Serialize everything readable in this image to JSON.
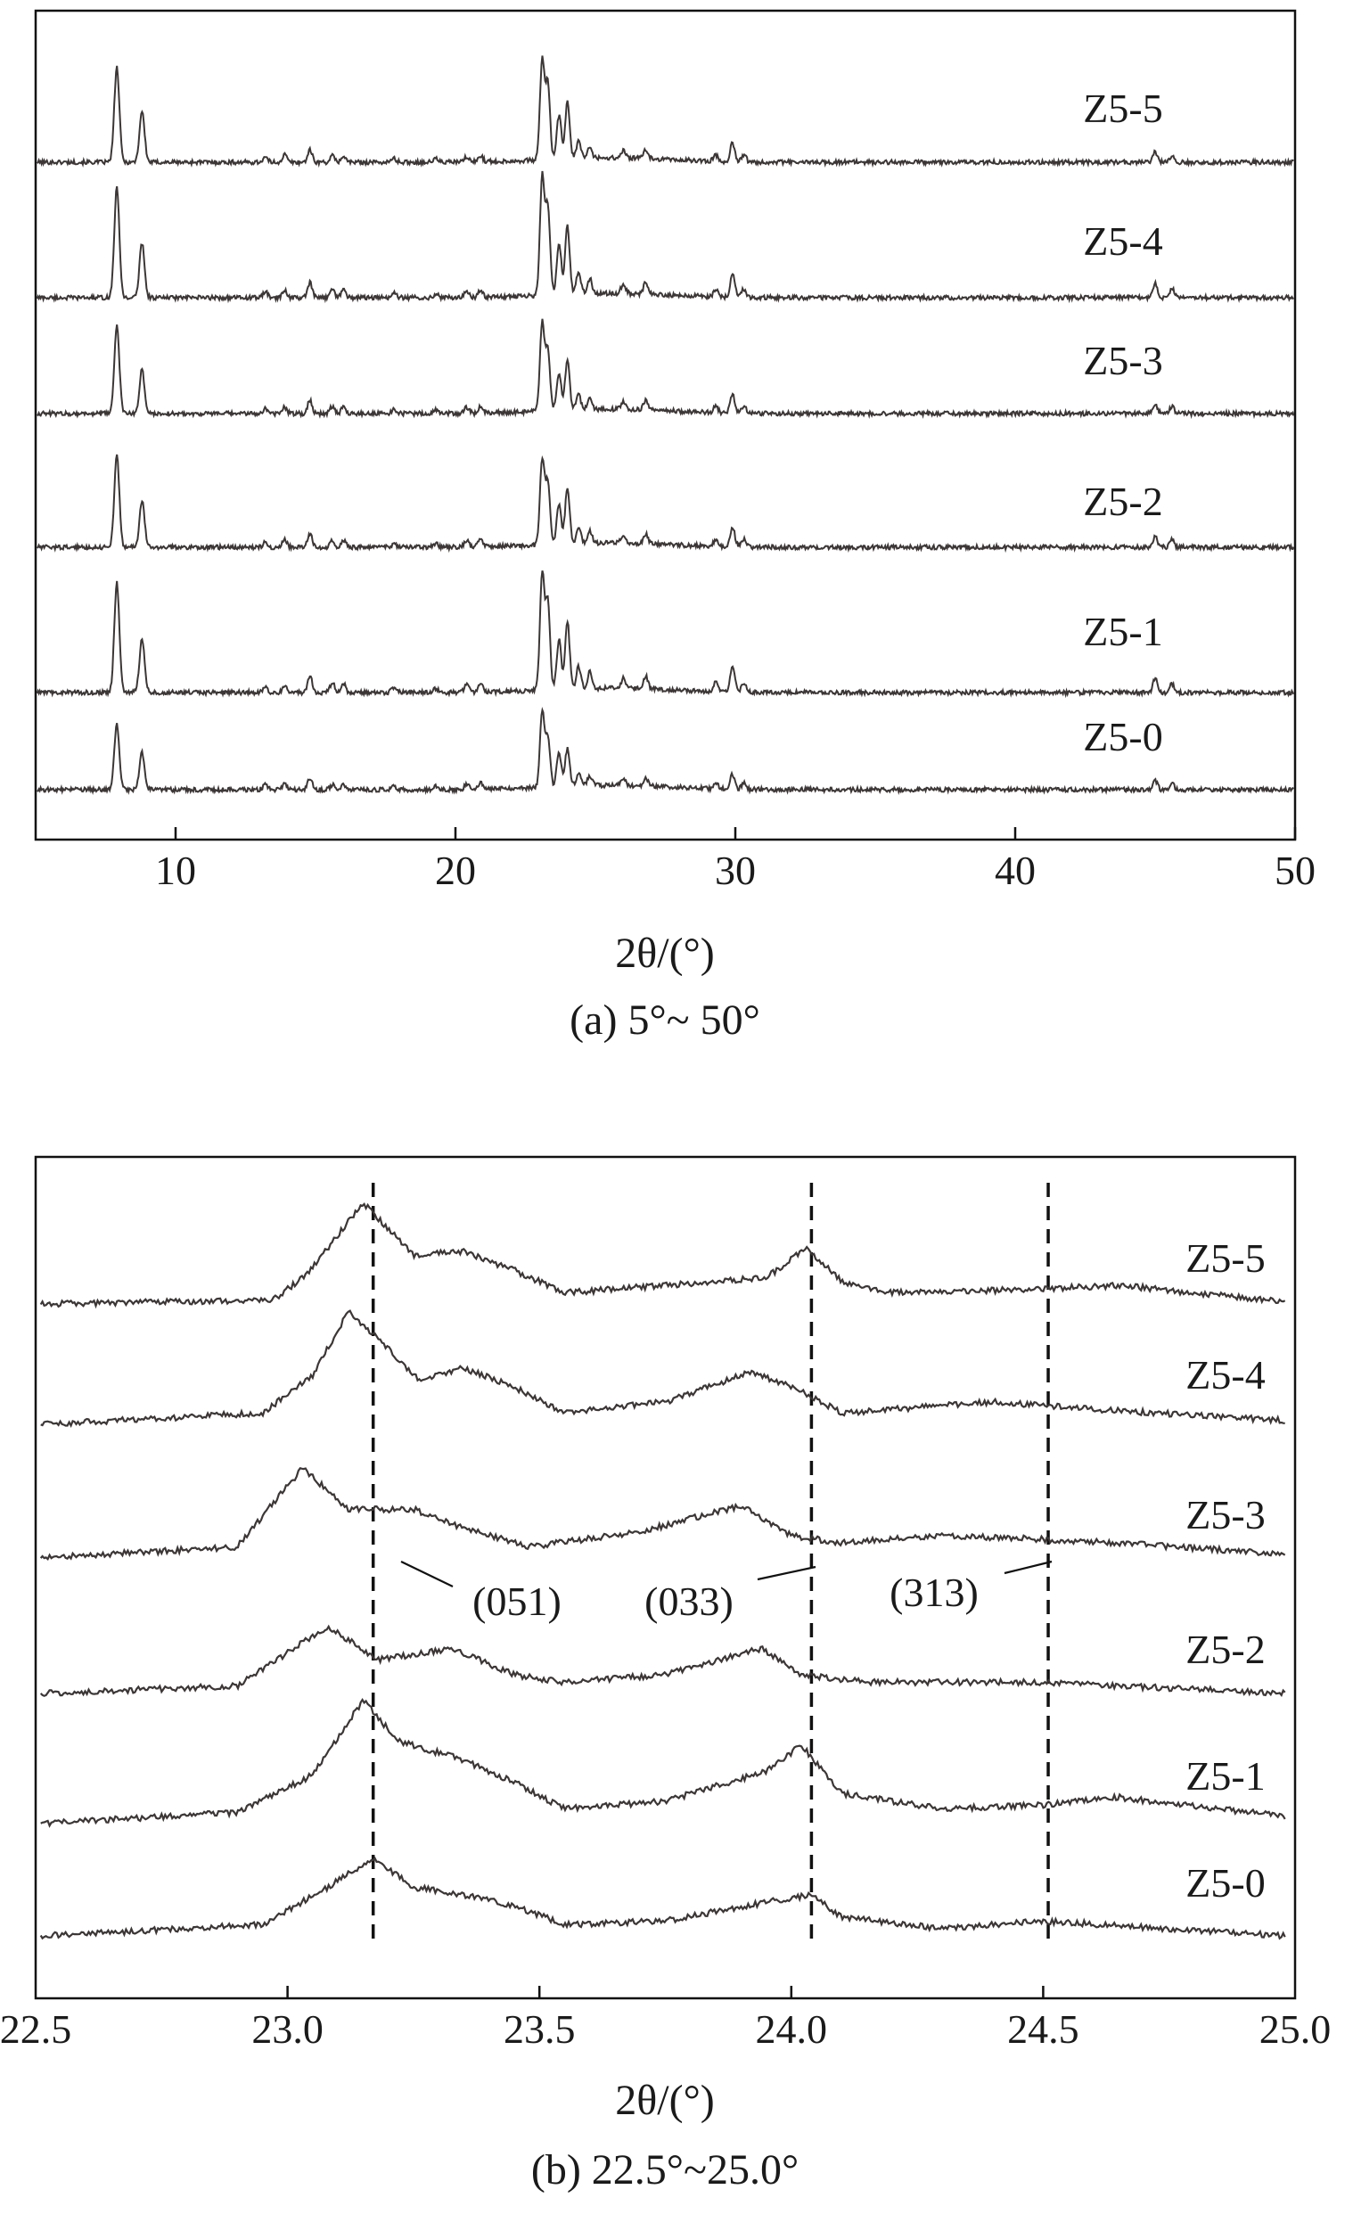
{
  "colors": {
    "trace": "#3c3636",
    "axis": "#111111",
    "guide": "#111111"
  },
  "chart_data": [
    {
      "type": "line",
      "caption": "(a) 5°~ 50°",
      "xlabel": "2θ/(°)",
      "xlim": [
        5,
        50
      ],
      "xticks": [
        10,
        20,
        30,
        40,
        50
      ],
      "tick_labels": [
        "10",
        "20",
        "30",
        "40",
        "50"
      ],
      "y_axis_labels": false,
      "series": [
        {
          "name": "Z5-5",
          "peaks": [
            [
              7.9,
              7.6
            ],
            [
              8.8,
              4.1
            ],
            [
              13.2,
              0.4
            ],
            [
              13.9,
              0.6
            ],
            [
              14.8,
              1.0
            ],
            [
              15.6,
              0.5
            ],
            [
              16.0,
              0.5
            ],
            [
              17.8,
              0.3
            ],
            [
              19.3,
              0.3
            ],
            [
              20.4,
              0.4
            ],
            [
              20.9,
              0.5
            ],
            [
              23.1,
              8.0
            ],
            [
              23.3,
              6.0
            ],
            [
              23.7,
              3.5
            ],
            [
              24.0,
              4.5
            ],
            [
              24.4,
              1.4
            ],
            [
              24.8,
              0.9
            ],
            [
              26.0,
              0.6
            ],
            [
              26.8,
              0.7
            ],
            [
              29.3,
              0.5
            ],
            [
              29.9,
              1.5
            ],
            [
              30.3,
              0.6
            ],
            [
              45.0,
              0.8
            ],
            [
              45.6,
              0.5
            ]
          ]
        },
        {
          "name": "Z5-4",
          "peaks": [
            [
              7.9,
              8.8
            ],
            [
              8.8,
              4.4
            ],
            [
              13.2,
              0.5
            ],
            [
              13.9,
              0.6
            ],
            [
              14.8,
              1.2
            ],
            [
              15.6,
              0.8
            ],
            [
              16.0,
              0.7
            ],
            [
              17.8,
              0.4
            ],
            [
              19.3,
              0.3
            ],
            [
              20.4,
              0.5
            ],
            [
              20.9,
              0.6
            ],
            [
              23.1,
              9.5
            ],
            [
              23.3,
              7.0
            ],
            [
              23.7,
              4.2
            ],
            [
              24.0,
              5.5
            ],
            [
              24.4,
              1.8
            ],
            [
              24.8,
              1.2
            ],
            [
              26.0,
              0.8
            ],
            [
              26.8,
              0.9
            ],
            [
              29.3,
              0.6
            ],
            [
              29.9,
              2.0
            ],
            [
              30.3,
              0.7
            ],
            [
              45.0,
              1.1
            ],
            [
              45.6,
              0.8
            ]
          ]
        },
        {
          "name": "Z5-3",
          "peaks": [
            [
              7.9,
              7.0
            ],
            [
              8.8,
              3.5
            ],
            [
              13.2,
              0.4
            ],
            [
              13.9,
              0.5
            ],
            [
              14.8,
              1.1
            ],
            [
              15.6,
              0.6
            ],
            [
              16.0,
              0.5
            ],
            [
              17.8,
              0.3
            ],
            [
              19.3,
              0.3
            ],
            [
              20.4,
              0.5
            ],
            [
              20.9,
              0.5
            ],
            [
              23.1,
              7.0
            ],
            [
              23.3,
              4.8
            ],
            [
              23.7,
              3.0
            ],
            [
              24.0,
              4.0
            ],
            [
              24.4,
              1.2
            ],
            [
              24.8,
              0.9
            ],
            [
              26.0,
              0.6
            ],
            [
              26.8,
              0.8
            ],
            [
              29.3,
              0.5
            ],
            [
              29.9,
              1.5
            ],
            [
              30.3,
              0.6
            ],
            [
              45.0,
              0.8
            ],
            [
              45.6,
              0.6
            ]
          ]
        },
        {
          "name": "Z5-2",
          "peaks": [
            [
              7.9,
              7.3
            ],
            [
              8.8,
              3.7
            ],
            [
              13.2,
              0.4
            ],
            [
              13.9,
              0.6
            ],
            [
              14.8,
              1.1
            ],
            [
              15.6,
              0.6
            ],
            [
              16.0,
              0.6
            ],
            [
              17.8,
              0.3
            ],
            [
              19.3,
              0.3
            ],
            [
              20.4,
              0.5
            ],
            [
              20.9,
              0.6
            ],
            [
              23.1,
              6.8
            ],
            [
              23.3,
              5.0
            ],
            [
              23.7,
              3.2
            ],
            [
              24.0,
              4.5
            ],
            [
              24.4,
              1.3
            ],
            [
              24.8,
              1.0
            ],
            [
              26.0,
              0.6
            ],
            [
              26.8,
              0.8
            ],
            [
              29.3,
              0.5
            ],
            [
              29.9,
              1.6
            ],
            [
              30.3,
              0.6
            ],
            [
              45.0,
              0.9
            ],
            [
              45.6,
              0.6
            ]
          ]
        },
        {
          "name": "Z5-1",
          "peaks": [
            [
              7.9,
              8.8
            ],
            [
              8.8,
              4.4
            ],
            [
              13.2,
              0.5
            ],
            [
              13.9,
              0.6
            ],
            [
              14.8,
              1.4
            ],
            [
              15.6,
              0.8
            ],
            [
              16.0,
              0.7
            ],
            [
              17.8,
              0.4
            ],
            [
              19.3,
              0.3
            ],
            [
              20.4,
              0.6
            ],
            [
              20.9,
              0.6
            ],
            [
              23.1,
              9.3
            ],
            [
              23.3,
              7.0
            ],
            [
              23.7,
              4.0
            ],
            [
              24.0,
              5.5
            ],
            [
              24.4,
              1.8
            ],
            [
              24.8,
              1.3
            ],
            [
              26.0,
              0.8
            ],
            [
              26.8,
              1.0
            ],
            [
              29.3,
              0.7
            ],
            [
              29.9,
              2.0
            ],
            [
              30.3,
              0.7
            ],
            [
              45.0,
              1.1
            ],
            [
              45.6,
              0.7
            ]
          ]
        },
        {
          "name": "Z5-0",
          "peaks": [
            [
              7.9,
              5.2
            ],
            [
              8.8,
              3.0
            ],
            [
              13.2,
              0.4
            ],
            [
              13.9,
              0.5
            ],
            [
              14.8,
              0.9
            ],
            [
              15.6,
              0.4
            ],
            [
              16.0,
              0.4
            ],
            [
              17.8,
              0.3
            ],
            [
              19.3,
              0.3
            ],
            [
              20.4,
              0.4
            ],
            [
              20.9,
              0.5
            ],
            [
              23.1,
              6.0
            ],
            [
              23.3,
              4.0
            ],
            [
              23.7,
              2.8
            ],
            [
              24.0,
              3.0
            ],
            [
              24.4,
              1.0
            ],
            [
              24.8,
              0.8
            ],
            [
              26.0,
              0.5
            ],
            [
              26.8,
              0.7
            ],
            [
              29.3,
              0.5
            ],
            [
              29.9,
              1.2
            ],
            [
              30.3,
              0.5
            ],
            [
              45.0,
              0.7
            ],
            [
              45.6,
              0.5
            ]
          ]
        }
      ]
    },
    {
      "type": "line",
      "caption": "(b) 22.5°~25.0°",
      "xlabel": "2θ/(°)",
      "xlim": [
        22.5,
        25.0
      ],
      "xticks": [
        22.5,
        23.0,
        23.5,
        24.0,
        24.5,
        25.0
      ],
      "tick_labels": [
        "22.5",
        "23.0",
        "23.5",
        "24.0",
        "24.5",
        "25.0"
      ],
      "y_axis_labels": false,
      "reference_lines": [
        23.17,
        24.04,
        24.51
      ],
      "annotations": [
        {
          "text": "(051)",
          "x": 23.17
        },
        {
          "text": "(033)",
          "x": 24.04
        },
        {
          "text": "(313)",
          "x": 24.51
        }
      ],
      "series": [
        {
          "name": "Z5-5",
          "points": [
            [
              22.51,
              0
            ],
            [
              22.97,
              0.1
            ],
            [
              23.04,
              0.8
            ],
            [
              23.15,
              2.7
            ],
            [
              23.25,
              1.3
            ],
            [
              23.35,
              1.4
            ],
            [
              23.45,
              0.9
            ],
            [
              23.55,
              0.3
            ],
            [
              23.75,
              0.5
            ],
            [
              23.95,
              0.7
            ],
            [
              24.03,
              1.5
            ],
            [
              24.1,
              0.6
            ],
            [
              24.2,
              0.3
            ],
            [
              24.5,
              0.4
            ],
            [
              24.65,
              0.5
            ],
            [
              24.98,
              0.05
            ]
          ]
        },
        {
          "name": "Z5-4",
          "points": [
            [
              22.51,
              0
            ],
            [
              22.95,
              0.3
            ],
            [
              23.05,
              1.3
            ],
            [
              23.12,
              3.0
            ],
            [
              23.18,
              2.3
            ],
            [
              23.26,
              1.2
            ],
            [
              23.35,
              1.5
            ],
            [
              23.45,
              1.0
            ],
            [
              23.55,
              0.3
            ],
            [
              23.75,
              0.6
            ],
            [
              23.92,
              1.4
            ],
            [
              24.02,
              0.9
            ],
            [
              24.1,
              0.3
            ],
            [
              24.4,
              0.6
            ],
            [
              24.6,
              0.4
            ],
            [
              24.98,
              0.1
            ]
          ]
        },
        {
          "name": "Z5-3",
          "points": [
            [
              22.51,
              0
            ],
            [
              22.9,
              0.3
            ],
            [
              23.03,
              2.4
            ],
            [
              23.12,
              1.3
            ],
            [
              23.25,
              1.3
            ],
            [
              23.35,
              0.8
            ],
            [
              23.48,
              0.3
            ],
            [
              23.7,
              0.7
            ],
            [
              23.9,
              1.4
            ],
            [
              24.0,
              0.6
            ],
            [
              24.1,
              0.4
            ],
            [
              24.3,
              0.6
            ],
            [
              24.5,
              0.5
            ],
            [
              24.65,
              0.4
            ],
            [
              24.98,
              0.1
            ]
          ]
        },
        {
          "name": "Z5-2",
          "points": [
            [
              22.51,
              0
            ],
            [
              22.9,
              0.2
            ],
            [
              23.08,
              1.8
            ],
            [
              23.18,
              0.9
            ],
            [
              23.33,
              1.2
            ],
            [
              23.45,
              0.5
            ],
            [
              23.55,
              0.3
            ],
            [
              23.75,
              0.5
            ],
            [
              23.94,
              1.2
            ],
            [
              24.02,
              0.5
            ],
            [
              24.15,
              0.3
            ],
            [
              24.5,
              0.3
            ],
            [
              24.98,
              0.0
            ]
          ]
        },
        {
          "name": "Z5-1",
          "points": [
            [
              22.51,
              0
            ],
            [
              22.9,
              0.3
            ],
            [
              23.05,
              1.3
            ],
            [
              23.15,
              3.3
            ],
            [
              23.22,
              2.2
            ],
            [
              23.35,
              1.7
            ],
            [
              23.45,
              1.1
            ],
            [
              23.55,
              0.4
            ],
            [
              23.75,
              0.6
            ],
            [
              23.95,
              1.4
            ],
            [
              24.02,
              2.1
            ],
            [
              24.1,
              0.8
            ],
            [
              24.3,
              0.4
            ],
            [
              24.5,
              0.5
            ],
            [
              24.65,
              0.7
            ],
            [
              24.98,
              0.2
            ]
          ]
        },
        {
          "name": "Z5-0",
          "points": [
            [
              22.51,
              0
            ],
            [
              22.95,
              0.3
            ],
            [
              23.08,
              1.3
            ],
            [
              23.17,
              2.1
            ],
            [
              23.25,
              1.3
            ],
            [
              23.35,
              1.1
            ],
            [
              23.45,
              0.8
            ],
            [
              23.55,
              0.3
            ],
            [
              23.75,
              0.4
            ],
            [
              23.95,
              0.9
            ],
            [
              24.04,
              1.1
            ],
            [
              24.1,
              0.5
            ],
            [
              24.3,
              0.2
            ],
            [
              24.5,
              0.4
            ],
            [
              24.98,
              0.0
            ]
          ]
        }
      ]
    }
  ]
}
